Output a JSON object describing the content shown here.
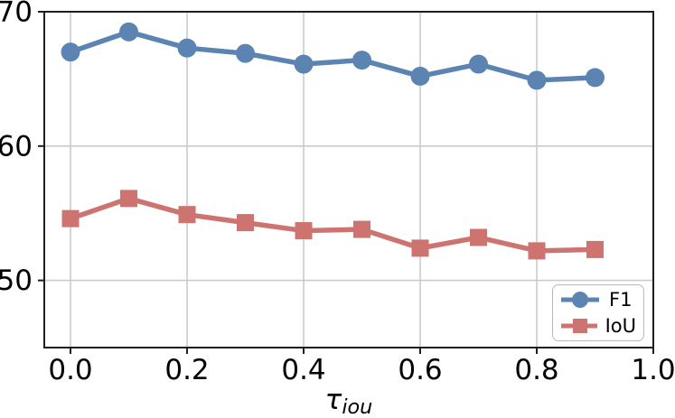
{
  "chart_data": {
    "type": "line",
    "title": "",
    "xlabel_main": "τ",
    "xlabel_sub": "iou",
    "ylabel": "",
    "x": [
      0.0,
      0.1,
      0.2,
      0.3,
      0.4,
      0.5,
      0.6,
      0.7,
      0.8,
      0.9
    ],
    "series": [
      {
        "name": "F1",
        "marker": "circle",
        "color": "#5b84b2",
        "values": [
          67.0,
          68.5,
          67.3,
          66.9,
          66.1,
          66.4,
          65.2,
          66.1,
          64.9,
          65.1
        ]
      },
      {
        "name": "IoU",
        "marker": "square",
        "color": "#cd7370",
        "values": [
          54.6,
          56.1,
          54.9,
          54.3,
          53.7,
          53.8,
          52.4,
          53.2,
          52.2,
          52.3
        ]
      }
    ],
    "xticks": [
      0.0,
      0.2,
      0.4,
      0.6,
      0.8,
      1.0
    ],
    "xtick_labels": [
      "0.0",
      "0.2",
      "0.4",
      "0.6",
      "0.8",
      "1.0"
    ],
    "yticks": [
      50,
      60,
      70
    ],
    "ytick_labels": [
      "50",
      "60",
      "70"
    ],
    "xlim": [
      -0.045,
      1.0
    ],
    "ylim": [
      45,
      70
    ],
    "grid": true,
    "legend_position": "lower right",
    "colors": {
      "grid": "#cbcbcb",
      "spine": "#1f1f1f",
      "tick_label": "#000000",
      "background": "#ffffff"
    }
  }
}
